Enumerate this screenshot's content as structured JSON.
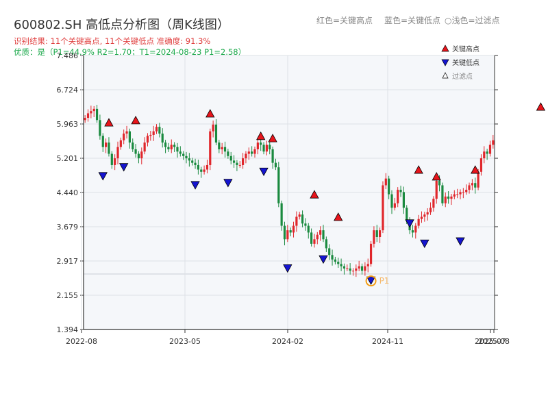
{
  "header": {
    "title": "600802.SH 高低点分析图（周K线图）",
    "result": "识别结果: 11个关键高点, 11个关键低点   准确度: 91.3%",
    "quality": "优质：是（P1=44.9%  R2=1.70；T1=2024-08-23 P1=2.58）",
    "legend_red": "红色=关键高点",
    "legend_blue": "蓝色=关键低点",
    "legend_hollow": "○浅色=过滤点"
  },
  "legend": {
    "high": "关键高点",
    "low": "关键低点",
    "filtered": "过滤点"
  },
  "colors": {
    "up": "#e0262b",
    "down": "#1a8a3f",
    "high": "#e8141b",
    "low": "#1414d0",
    "p1": "#f39c12"
  },
  "chart_data": {
    "type": "candlestick",
    "yticks": [
      "1.394",
      "2.155",
      "2.917",
      "3.679",
      "4.440",
      "5.201",
      "5.963",
      "6.724",
      "7.486"
    ],
    "ylim": [
      1.394,
      7.486
    ],
    "xticks": [
      "2022-08",
      "2023-05",
      "2024-02",
      "2024-11",
      "2025-07",
      "2025-08"
    ],
    "close": [
      6.1,
      6.2,
      6.25,
      6.3,
      6.05,
      5.7,
      5.45,
      5.55,
      5.3,
      5.05,
      5.2,
      5.45,
      5.6,
      5.75,
      5.8,
      5.55,
      5.4,
      5.3,
      5.2,
      5.35,
      5.55,
      5.7,
      5.72,
      5.8,
      5.9,
      5.75,
      5.55,
      5.45,
      5.4,
      5.5,
      5.45,
      5.35,
      5.3,
      5.25,
      5.2,
      5.15,
      5.1,
      5.05,
      4.95,
      4.9,
      4.95,
      5.05,
      5.8,
      5.95,
      5.55,
      5.4,
      5.45,
      5.35,
      5.25,
      5.15,
      5.1,
      5.05,
      5.05,
      5.2,
      5.3,
      5.35,
      5.3,
      5.4,
      5.55,
      5.5,
      5.35,
      5.5,
      5.4,
      5.1,
      5.0,
      4.2,
      3.7,
      3.4,
      3.6,
      3.55,
      3.7,
      3.9,
      3.95,
      3.75,
      3.7,
      3.55,
      3.3,
      3.4,
      3.5,
      3.6,
      3.4,
      3.2,
      3.05,
      2.95,
      2.9,
      2.85,
      2.8,
      2.75,
      2.75,
      2.7,
      2.7,
      2.75,
      2.8,
      2.7,
      2.8,
      2.85,
      3.3,
      3.6,
      3.45,
      3.6,
      4.6,
      4.75,
      4.4,
      4.1,
      4.2,
      4.5,
      4.45,
      4.1,
      3.8,
      3.6,
      3.55,
      3.7,
      3.85,
      3.9,
      3.95,
      4.0,
      4.1,
      4.3,
      4.7,
      4.6,
      4.2,
      4.35,
      4.3,
      4.35,
      4.4,
      4.4,
      4.45,
      4.45,
      4.5,
      4.6,
      4.65,
      4.55,
      4.9,
      5.2,
      5.35,
      5.3,
      5.5,
      5.6
    ],
    "highs": [
      {
        "i": 8,
        "v": 5.9
      },
      {
        "i": 17,
        "v": 5.95
      },
      {
        "i": 42,
        "v": 6.1
      },
      {
        "i": 59,
        "v": 5.6
      },
      {
        "i": 63,
        "v": 5.55
      },
      {
        "i": 77,
        "v": 4.3
      },
      {
        "i": 85,
        "v": 3.8
      },
      {
        "i": 112,
        "v": 4.85
      },
      {
        "i": 118,
        "v": 4.7
      },
      {
        "i": 131,
        "v": 4.85
      },
      {
        "i": 153,
        "v": 6.25
      }
    ],
    "lows": [
      {
        "i": 6,
        "v": 4.9
      },
      {
        "i": 13,
        "v": 5.1
      },
      {
        "i": 37,
        "v": 4.7
      },
      {
        "i": 48,
        "v": 4.75
      },
      {
        "i": 60,
        "v": 5.0
      },
      {
        "i": 68,
        "v": 2.85
      },
      {
        "i": 80,
        "v": 3.05
      },
      {
        "i": 96,
        "v": 2.58
      },
      {
        "i": 109,
        "v": 3.85
      },
      {
        "i": 114,
        "v": 3.4
      },
      {
        "i": 126,
        "v": 3.45
      }
    ],
    "p1_label": "P1"
  }
}
